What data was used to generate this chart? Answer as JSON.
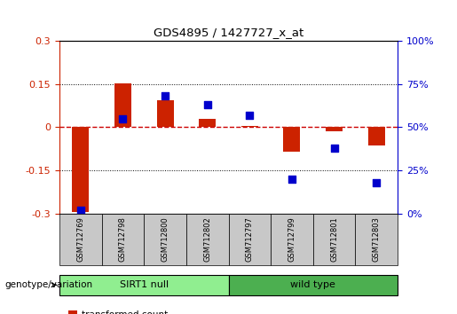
{
  "title": "GDS4895 / 1427727_x_at",
  "samples": [
    "GSM712769",
    "GSM712798",
    "GSM712800",
    "GSM712802",
    "GSM712797",
    "GSM712799",
    "GSM712801",
    "GSM712803"
  ],
  "transformed_counts": [
    -0.295,
    0.152,
    0.095,
    0.028,
    0.005,
    -0.085,
    -0.015,
    -0.065
  ],
  "percentile_ranks": [
    2,
    55,
    68,
    63,
    57,
    20,
    38,
    18
  ],
  "groups": [
    {
      "label": "SIRT1 null",
      "start": 0,
      "end": 4,
      "color": "#90EE90"
    },
    {
      "label": "wild type",
      "start": 4,
      "end": 8,
      "color": "#4CAF50"
    }
  ],
  "ylim_left": [
    -0.3,
    0.3
  ],
  "ylim_right": [
    0,
    100
  ],
  "yticks_left": [
    -0.3,
    -0.15,
    0,
    0.15,
    0.3
  ],
  "yticks_right": [
    0,
    25,
    50,
    75,
    100
  ],
  "ytick_labels_left": [
    "-0.3",
    "-0.15",
    "0",
    "0.15",
    "0.3"
  ],
  "ytick_labels_right": [
    "0%",
    "25%",
    "50%",
    "75%",
    "100%"
  ],
  "bar_color": "#CC2200",
  "dot_color": "#0000CC",
  "zero_line_color": "#CC0000",
  "grid_color": "#000000",
  "bar_width": 0.4,
  "dot_size": 40,
  "sirt1_null_color": "#B2EEB2",
  "wild_type_color": "#4CBB4C"
}
